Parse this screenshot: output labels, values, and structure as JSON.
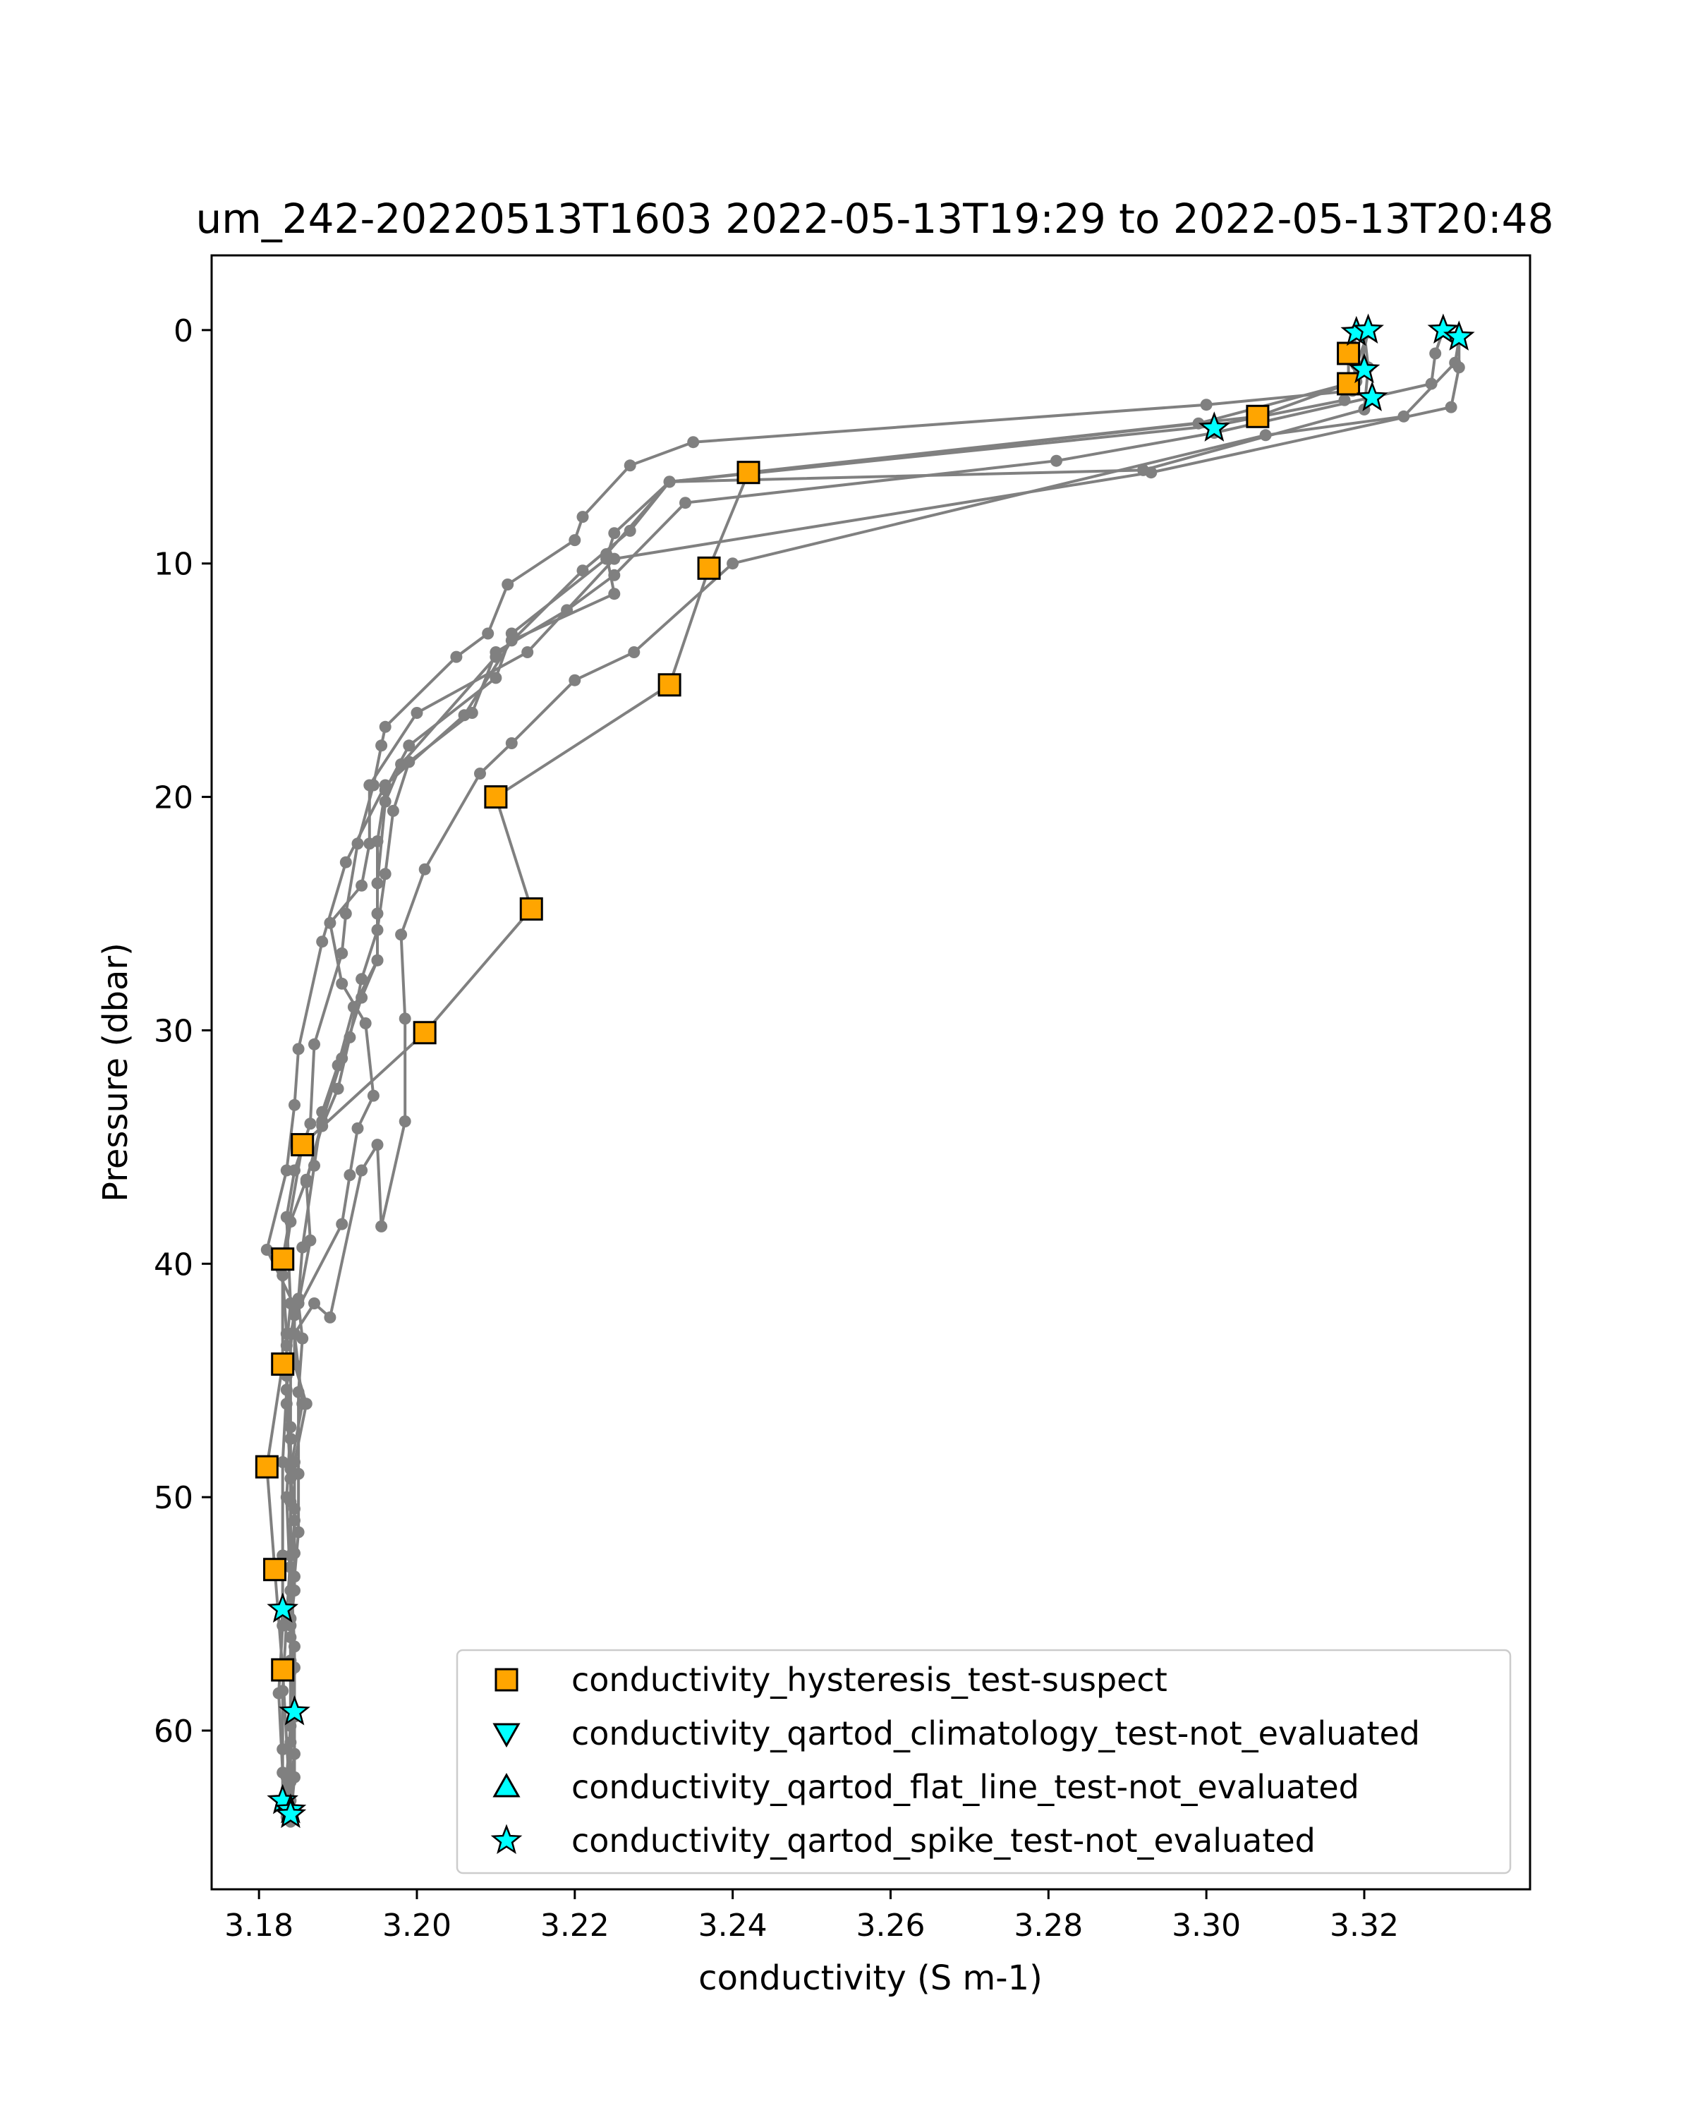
{
  "chart_data": {
    "type": "scatter",
    "title": "um_242-20220513T1603 2022-05-13T19:29 to 2022-05-13T20:48",
    "xlabel": "conductivity (S m-1)",
    "ylabel": "Pressure (dbar)",
    "xlim": [
      3.174,
      3.341
    ],
    "ylim": [
      66.8,
      -3.2
    ],
    "y_inverted": true,
    "x_ticks": [
      3.18,
      3.2,
      3.22,
      3.24,
      3.26,
      3.28,
      3.3,
      3.32
    ],
    "x_tick_labels": [
      "3.18",
      "3.20",
      "3.22",
      "3.24",
      "3.26",
      "3.28",
      "3.30",
      "3.32"
    ],
    "y_ticks": [
      0,
      10,
      20,
      30,
      40,
      50,
      60
    ],
    "y_tick_labels": [
      "0",
      "10",
      "20",
      "30",
      "40",
      "50",
      "60"
    ],
    "grid": false,
    "legend_position": "lower-right",
    "colors": {
      "profile_line": "#808080",
      "hysteresis": "#ffa500",
      "qartod": "#00ffff",
      "marker_edge": "#000000"
    },
    "profiles": [
      {
        "values": [
          [
            3.3205,
            0.1
          ],
          [
            3.319,
            1.5
          ],
          [
            3.3185,
            2.6
          ],
          [
            3.3,
            3.2
          ],
          [
            3.235,
            4.8
          ],
          [
            3.227,
            5.8
          ],
          [
            3.221,
            8.0
          ],
          [
            3.22,
            9.0
          ],
          [
            3.2115,
            10.9
          ],
          [
            3.209,
            13.0
          ],
          [
            3.205,
            14.0
          ],
          [
            3.196,
            17.0
          ],
          [
            3.1955,
            17.8
          ],
          [
            3.1945,
            19.5
          ],
          [
            3.1925,
            22.0
          ],
          [
            3.191,
            25.0
          ],
          [
            3.1905,
            26.7
          ],
          [
            3.187,
            30.6
          ],
          [
            3.1865,
            34.0
          ],
          [
            3.1845,
            36.0
          ],
          [
            3.1835,
            38.0
          ],
          [
            3.184,
            41.7
          ],
          [
            3.1835,
            43.5
          ],
          [
            3.1835,
            46.0
          ],
          [
            3.184,
            49.2
          ],
          [
            3.1845,
            50.5
          ],
          [
            3.1845,
            52.4
          ],
          [
            3.1845,
            54.0
          ],
          [
            3.184,
            55.5
          ],
          [
            3.1845,
            57.3
          ],
          [
            3.1845,
            59.3
          ],
          [
            3.1845,
            61.0
          ],
          [
            3.184,
            62.2
          ],
          [
            3.184,
            63.9
          ]
        ]
      },
      {
        "values": [
          [
            3.319,
            0.0
          ],
          [
            3.3185,
            1.2
          ],
          [
            3.319,
            2.2
          ],
          [
            3.299,
            4.0
          ],
          [
            3.232,
            6.5
          ],
          [
            3.225,
            8.7
          ],
          [
            3.224,
            9.8
          ],
          [
            3.212,
            13.0
          ],
          [
            3.21,
            14.9
          ],
          [
            3.199,
            17.8
          ],
          [
            3.196,
            19.7
          ],
          [
            3.195,
            21.9
          ],
          [
            3.195,
            25.0
          ],
          [
            3.195,
            27.0
          ],
          [
            3.193,
            28.6
          ],
          [
            3.1905,
            31.2
          ],
          [
            3.188,
            33.9
          ],
          [
            3.186,
            36.5
          ],
          [
            3.1865,
            39.0
          ],
          [
            3.185,
            41.7
          ],
          [
            3.1855,
            43.2
          ],
          [
            3.185,
            45.5
          ],
          [
            3.185,
            49.0
          ],
          [
            3.185,
            51.5
          ],
          [
            3.1845,
            53.4
          ],
          [
            3.184,
            55.2
          ],
          [
            3.184,
            57.0
          ],
          [
            3.184,
            59.8
          ],
          [
            3.1835,
            62.0
          ],
          [
            3.184,
            63.6
          ]
        ]
      },
      {
        "values": [
          [
            3.319,
            0.1
          ],
          [
            3.318,
            1.0
          ],
          [
            3.318,
            2.3
          ],
          [
            3.3065,
            3.7
          ],
          [
            3.242,
            6.1
          ],
          [
            3.237,
            10.2
          ],
          [
            3.232,
            15.2
          ],
          [
            3.21,
            20.0
          ],
          [
            3.2145,
            24.8
          ],
          [
            3.201,
            30.1
          ],
          [
            3.1855,
            34.9
          ],
          [
            3.183,
            39.8
          ],
          [
            3.183,
            44.3
          ],
          [
            3.181,
            48.7
          ],
          [
            3.182,
            53.1
          ],
          [
            3.183,
            57.4
          ],
          [
            3.184,
            63.5
          ]
        ]
      },
      {
        "values": [
          [
            3.33,
            0.0
          ],
          [
            3.329,
            1.0
          ],
          [
            3.3285,
            2.3
          ],
          [
            3.301,
            4.4
          ],
          [
            3.281,
            5.6
          ],
          [
            3.234,
            7.4
          ],
          [
            3.225,
            10.5
          ],
          [
            3.219,
            12.0
          ],
          [
            3.21,
            13.8
          ],
          [
            3.207,
            16.4
          ],
          [
            3.199,
            18.5
          ],
          [
            3.197,
            20.6
          ],
          [
            3.196,
            23.3
          ],
          [
            3.195,
            25.7
          ],
          [
            3.193,
            27.8
          ],
          [
            3.1915,
            30.3
          ],
          [
            3.19,
            32.5
          ],
          [
            3.188,
            34.1
          ],
          [
            3.186,
            36.4
          ],
          [
            3.184,
            38.2
          ],
          [
            3.183,
            40.5
          ],
          [
            3.1835,
            43.0
          ],
          [
            3.1835,
            44.8
          ],
          [
            3.184,
            47.5
          ],
          [
            3.184,
            50.2
          ],
          [
            3.184,
            52.5
          ],
          [
            3.1835,
            55.2
          ],
          [
            3.183,
            58.3
          ],
          [
            3.183,
            60.8
          ],
          [
            3.183,
            63.1
          ]
        ]
      },
      {
        "values": [
          [
            3.332,
            0.3
          ],
          [
            3.332,
            1.6
          ],
          [
            3.331,
            3.3
          ],
          [
            3.293,
            6.1
          ],
          [
            3.225,
            9.8
          ],
          [
            3.214,
            13.8
          ],
          [
            3.2,
            16.4
          ],
          [
            3.194,
            19.5
          ],
          [
            3.194,
            22.0
          ],
          [
            3.193,
            23.8
          ],
          [
            3.189,
            25.4
          ],
          [
            3.1905,
            28.0
          ],
          [
            3.1935,
            29.7
          ],
          [
            3.1945,
            32.8
          ],
          [
            3.1925,
            34.2
          ],
          [
            3.1915,
            36.2
          ],
          [
            3.1905,
            38.3
          ],
          [
            3.1845,
            42.2
          ],
          [
            3.1845,
            44.3
          ],
          [
            3.186,
            46.0
          ],
          [
            3.1845,
            48.5
          ],
          [
            3.1845,
            51.0
          ],
          [
            3.184,
            53.0
          ],
          [
            3.184,
            56.0
          ],
          [
            3.1845,
            59.4
          ],
          [
            3.1845,
            62.0
          ],
          [
            3.184,
            63.8
          ]
        ]
      },
      {
        "values": [
          [
            3.32,
            0.1
          ],
          [
            3.3205,
            1.6
          ],
          [
            3.32,
            3.4
          ],
          [
            3.292,
            6.0
          ],
          [
            3.232,
            6.5
          ],
          [
            3.224,
            9.6
          ],
          [
            3.225,
            11.3
          ],
          [
            3.212,
            13.3
          ],
          [
            3.206,
            16.5
          ],
          [
            3.196,
            19.5
          ],
          [
            3.191,
            22.8
          ],
          [
            3.188,
            26.2
          ],
          [
            3.185,
            30.8
          ],
          [
            3.1845,
            33.2
          ],
          [
            3.1835,
            36.0
          ],
          [
            3.181,
            39.4
          ],
          [
            3.1845,
            41.8
          ],
          [
            3.1835,
            45.4
          ],
          [
            3.183,
            48.5
          ],
          [
            3.183,
            52.5
          ],
          [
            3.183,
            55.5
          ],
          [
            3.1825,
            58.4
          ],
          [
            3.183,
            61.8
          ],
          [
            3.1835,
            63.7
          ]
        ]
      },
      {
        "values": [
          [
            3.332,
            0.4
          ],
          [
            3.3315,
            1.4
          ],
          [
            3.325,
            3.7
          ],
          [
            3.3075,
            4.5
          ],
          [
            3.24,
            10.0
          ],
          [
            3.2275,
            13.8
          ],
          [
            3.22,
            15.0
          ],
          [
            3.212,
            17.7
          ],
          [
            3.208,
            19.0
          ],
          [
            3.201,
            23.1
          ],
          [
            3.198,
            25.9
          ],
          [
            3.1985,
            29.5
          ],
          [
            3.1985,
            33.9
          ],
          [
            3.1955,
            38.4
          ],
          [
            3.195,
            34.9
          ],
          [
            3.193,
            36.0
          ],
          [
            3.189,
            42.3
          ],
          [
            3.187,
            41.7
          ],
          [
            3.1845,
            43.0
          ],
          [
            3.1855,
            46.0
          ],
          [
            3.184,
            48.8
          ],
          [
            3.184,
            53.0
          ],
          [
            3.1845,
            56.4
          ],
          [
            3.1845,
            59.3
          ],
          [
            3.1835,
            62.5
          ]
        ]
      },
      {
        "values": [
          [
            3.3205,
            0.0
          ],
          [
            3.3195,
            1.7
          ],
          [
            3.3175,
            3.0
          ],
          [
            3.301,
            4.1
          ],
          [
            3.232,
            6.5
          ],
          [
            3.227,
            8.6
          ],
          [
            3.221,
            10.3
          ],
          [
            3.21,
            14.0
          ],
          [
            3.198,
            18.6
          ],
          [
            3.196,
            20.2
          ],
          [
            3.195,
            23.7
          ],
          [
            3.195,
            27.0
          ],
          [
            3.192,
            29.0
          ],
          [
            3.19,
            31.5
          ],
          [
            3.188,
            33.5
          ],
          [
            3.187,
            35.8
          ],
          [
            3.1855,
            39.3
          ],
          [
            3.185,
            41.5
          ],
          [
            3.184,
            43.0
          ],
          [
            3.184,
            47.0
          ],
          [
            3.1835,
            50.0
          ],
          [
            3.184,
            54.0
          ],
          [
            3.184,
            57.5
          ],
          [
            3.184,
            60.5
          ],
          [
            3.184,
            63.0
          ]
        ]
      }
    ],
    "series": [
      {
        "name": "conductivity_hysteresis_test-suspect",
        "marker": "square",
        "color": "#ffa500",
        "values": [
          [
            3.318,
            1.0
          ],
          [
            3.318,
            2.3
          ],
          [
            3.3065,
            3.7
          ],
          [
            3.242,
            6.1
          ],
          [
            3.237,
            10.2
          ],
          [
            3.232,
            15.2
          ],
          [
            3.21,
            20.0
          ],
          [
            3.2145,
            24.8
          ],
          [
            3.201,
            30.1
          ],
          [
            3.1855,
            34.9
          ],
          [
            3.183,
            39.8
          ],
          [
            3.183,
            44.3
          ],
          [
            3.181,
            48.7
          ],
          [
            3.182,
            53.1
          ],
          [
            3.183,
            57.4
          ]
        ]
      },
      {
        "name": "conductivity_qartod_climatology_test-not_evaluated",
        "marker": "triangle-down",
        "color": "#00ffff",
        "values": []
      },
      {
        "name": "conductivity_qartod_flat_line_test-not_evaluated",
        "marker": "triangle-up",
        "color": "#00ffff",
        "values": []
      },
      {
        "name": "conductivity_qartod_spike_test-not_evaluated",
        "marker": "star",
        "color": "#00ffff",
        "values": [
          [
            3.319,
            0.1
          ],
          [
            3.3205,
            0.0
          ],
          [
            3.33,
            0.0
          ],
          [
            3.332,
            0.3
          ],
          [
            3.32,
            1.7
          ],
          [
            3.321,
            2.9
          ],
          [
            3.301,
            4.2
          ],
          [
            3.183,
            54.8
          ],
          [
            3.1845,
            59.2
          ],
          [
            3.183,
            63.0
          ],
          [
            3.184,
            63.4
          ],
          [
            3.184,
            63.6
          ]
        ]
      }
    ]
  }
}
